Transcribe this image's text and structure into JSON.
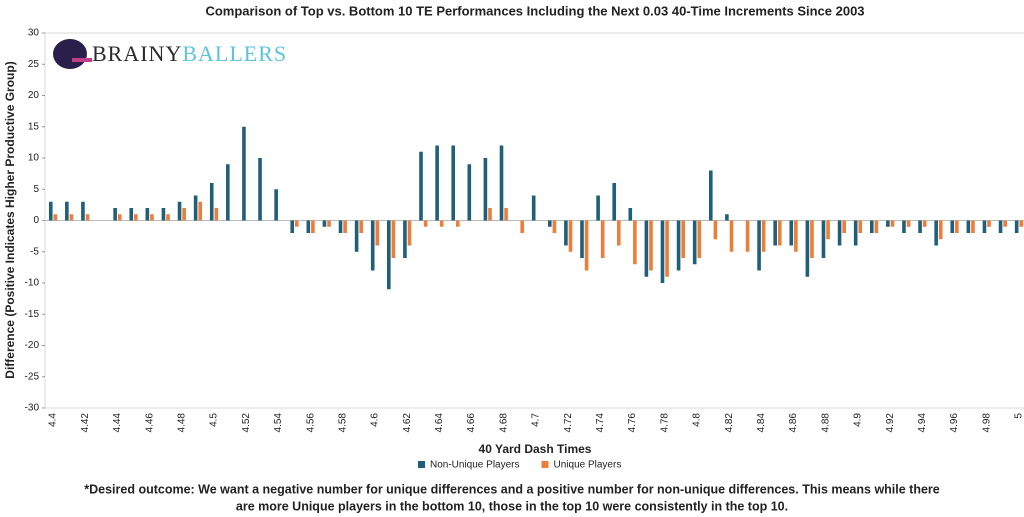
{
  "chart_data": {
    "type": "bar",
    "title": "Comparison of Top vs. Bottom 10 TE Performances Including the Next 0.03 40-Time Increments Since 2003",
    "x_label": "40 Yard Dash Times",
    "y_label": "Difference (Positive Indicates Higher Productive Group)",
    "logo": [
      "BRAINY",
      "BALLERS"
    ],
    "footnote": [
      "*Desired outcome: We want a negative number for unique differences and a positive number for non-unique differences. This means while there",
      "are more Unique players in the bottom 10, those in the top 10 were consistently in the top 10."
    ],
    "categories": [
      "4.4",
      null,
      "4.42",
      null,
      "4.44",
      null,
      "4.46",
      null,
      "4.48",
      null,
      "4.5",
      null,
      "4.52",
      null,
      "4.54",
      null,
      "4.56",
      null,
      "4.58",
      null,
      "4.6",
      null,
      "4.62",
      null,
      "4.64",
      null,
      "4.66",
      null,
      "4.68",
      null,
      "4.7",
      null,
      "4.72",
      null,
      "4.74",
      null,
      "4.76",
      null,
      "4.78",
      null,
      "4.8",
      null,
      "4.82",
      null,
      "4.84",
      null,
      "4.86",
      null,
      "4.88",
      null,
      "4.9",
      null,
      "4.92",
      null,
      "4.94",
      null,
      "4.96",
      null,
      "4.98",
      null,
      "5"
    ],
    "series": [
      {
        "name": "Non-Unique Players",
        "color": "#1f5f7a",
        "values": [
          3,
          3,
          3,
          0,
          2,
          2,
          2,
          2,
          3,
          4,
          6,
          9,
          15,
          10,
          5,
          -2,
          -2,
          -1,
          -2,
          -5,
          -8,
          -11,
          -6,
          11,
          12,
          12,
          9,
          10,
          12,
          0,
          4,
          -1,
          -4,
          -6,
          4,
          6,
          2,
          -9,
          -10,
          -8,
          -7,
          8,
          1,
          0,
          -8,
          -4,
          -4,
          -9,
          -6,
          -4,
          -4,
          -2,
          -1,
          -2,
          -2,
          -4,
          -2,
          -2,
          -2,
          -2,
          -2
        ]
      },
      {
        "name": "Unique Players",
        "color": "#ec7d3a",
        "values": [
          1,
          1,
          1,
          0,
          1,
          1,
          1,
          1,
          2,
          3,
          2,
          0,
          0,
          0,
          0,
          -1,
          -2,
          -1,
          -2,
          -2,
          -4,
          -6,
          -4,
          -1,
          -1,
          -1,
          0,
          2,
          2,
          -2,
          0,
          -2,
          -5,
          -8,
          -6,
          -4,
          -7,
          -8,
          -9,
          -6,
          -6,
          -3,
          -5,
          -5,
          -5,
          -4,
          -5,
          -6,
          -3,
          -2,
          -2,
          -2,
          -1,
          -1,
          -1,
          -3,
          -2,
          -2,
          -1,
          -1,
          -1
        ]
      }
    ],
    "ylim": [
      -30,
      30
    ],
    "yticks": [
      -30,
      -25,
      -20,
      -15,
      -10,
      -5,
      0,
      5,
      10,
      15,
      20,
      25,
      30
    ]
  }
}
